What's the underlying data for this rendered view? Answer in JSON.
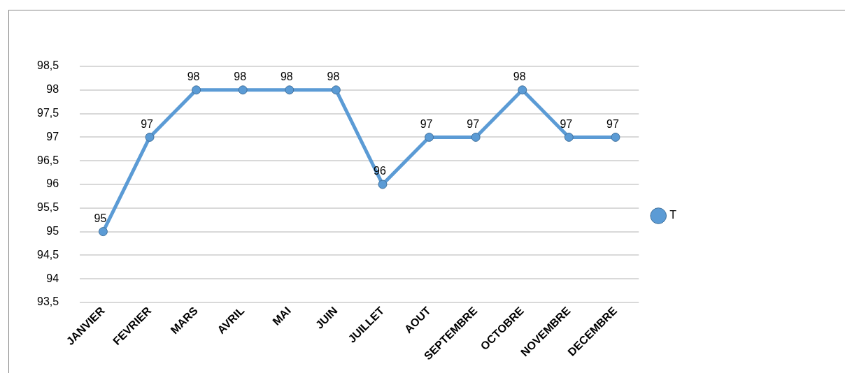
{
  "chart_data": {
    "type": "line",
    "categories": [
      "JANVIER",
      "FEVRIER",
      "MARS",
      "AVRIL",
      "MAI",
      "JUIN",
      "JUILLET",
      "AOUT",
      "SEPTEMBRE",
      "OCTOBRE",
      "NOVEMBRE",
      "DECEMBRE"
    ],
    "series": [
      {
        "name": "T",
        "color": "#5b9bd5",
        "values": [
          95,
          97,
          98,
          98,
          98,
          98,
          96,
          97,
          97,
          98,
          97,
          97
        ]
      }
    ],
    "ylim": [
      93.5,
      98.5
    ],
    "yticks": [
      {
        "value": 93.5,
        "label": "93,5"
      },
      94,
      {
        "value": 94.5,
        "label": "94,5"
      },
      95,
      {
        "value": 95.5,
        "label": "95,5"
      },
      96,
      {
        "value": 96.5,
        "label": "96,5"
      },
      97,
      {
        "value": 97.5,
        "label": "97,5"
      },
      98,
      {
        "value": 98.5,
        "label": "98,5"
      }
    ],
    "grid": "y",
    "legend": "right",
    "marker": "circle",
    "line_style": "solid",
    "data_labels": true
  }
}
